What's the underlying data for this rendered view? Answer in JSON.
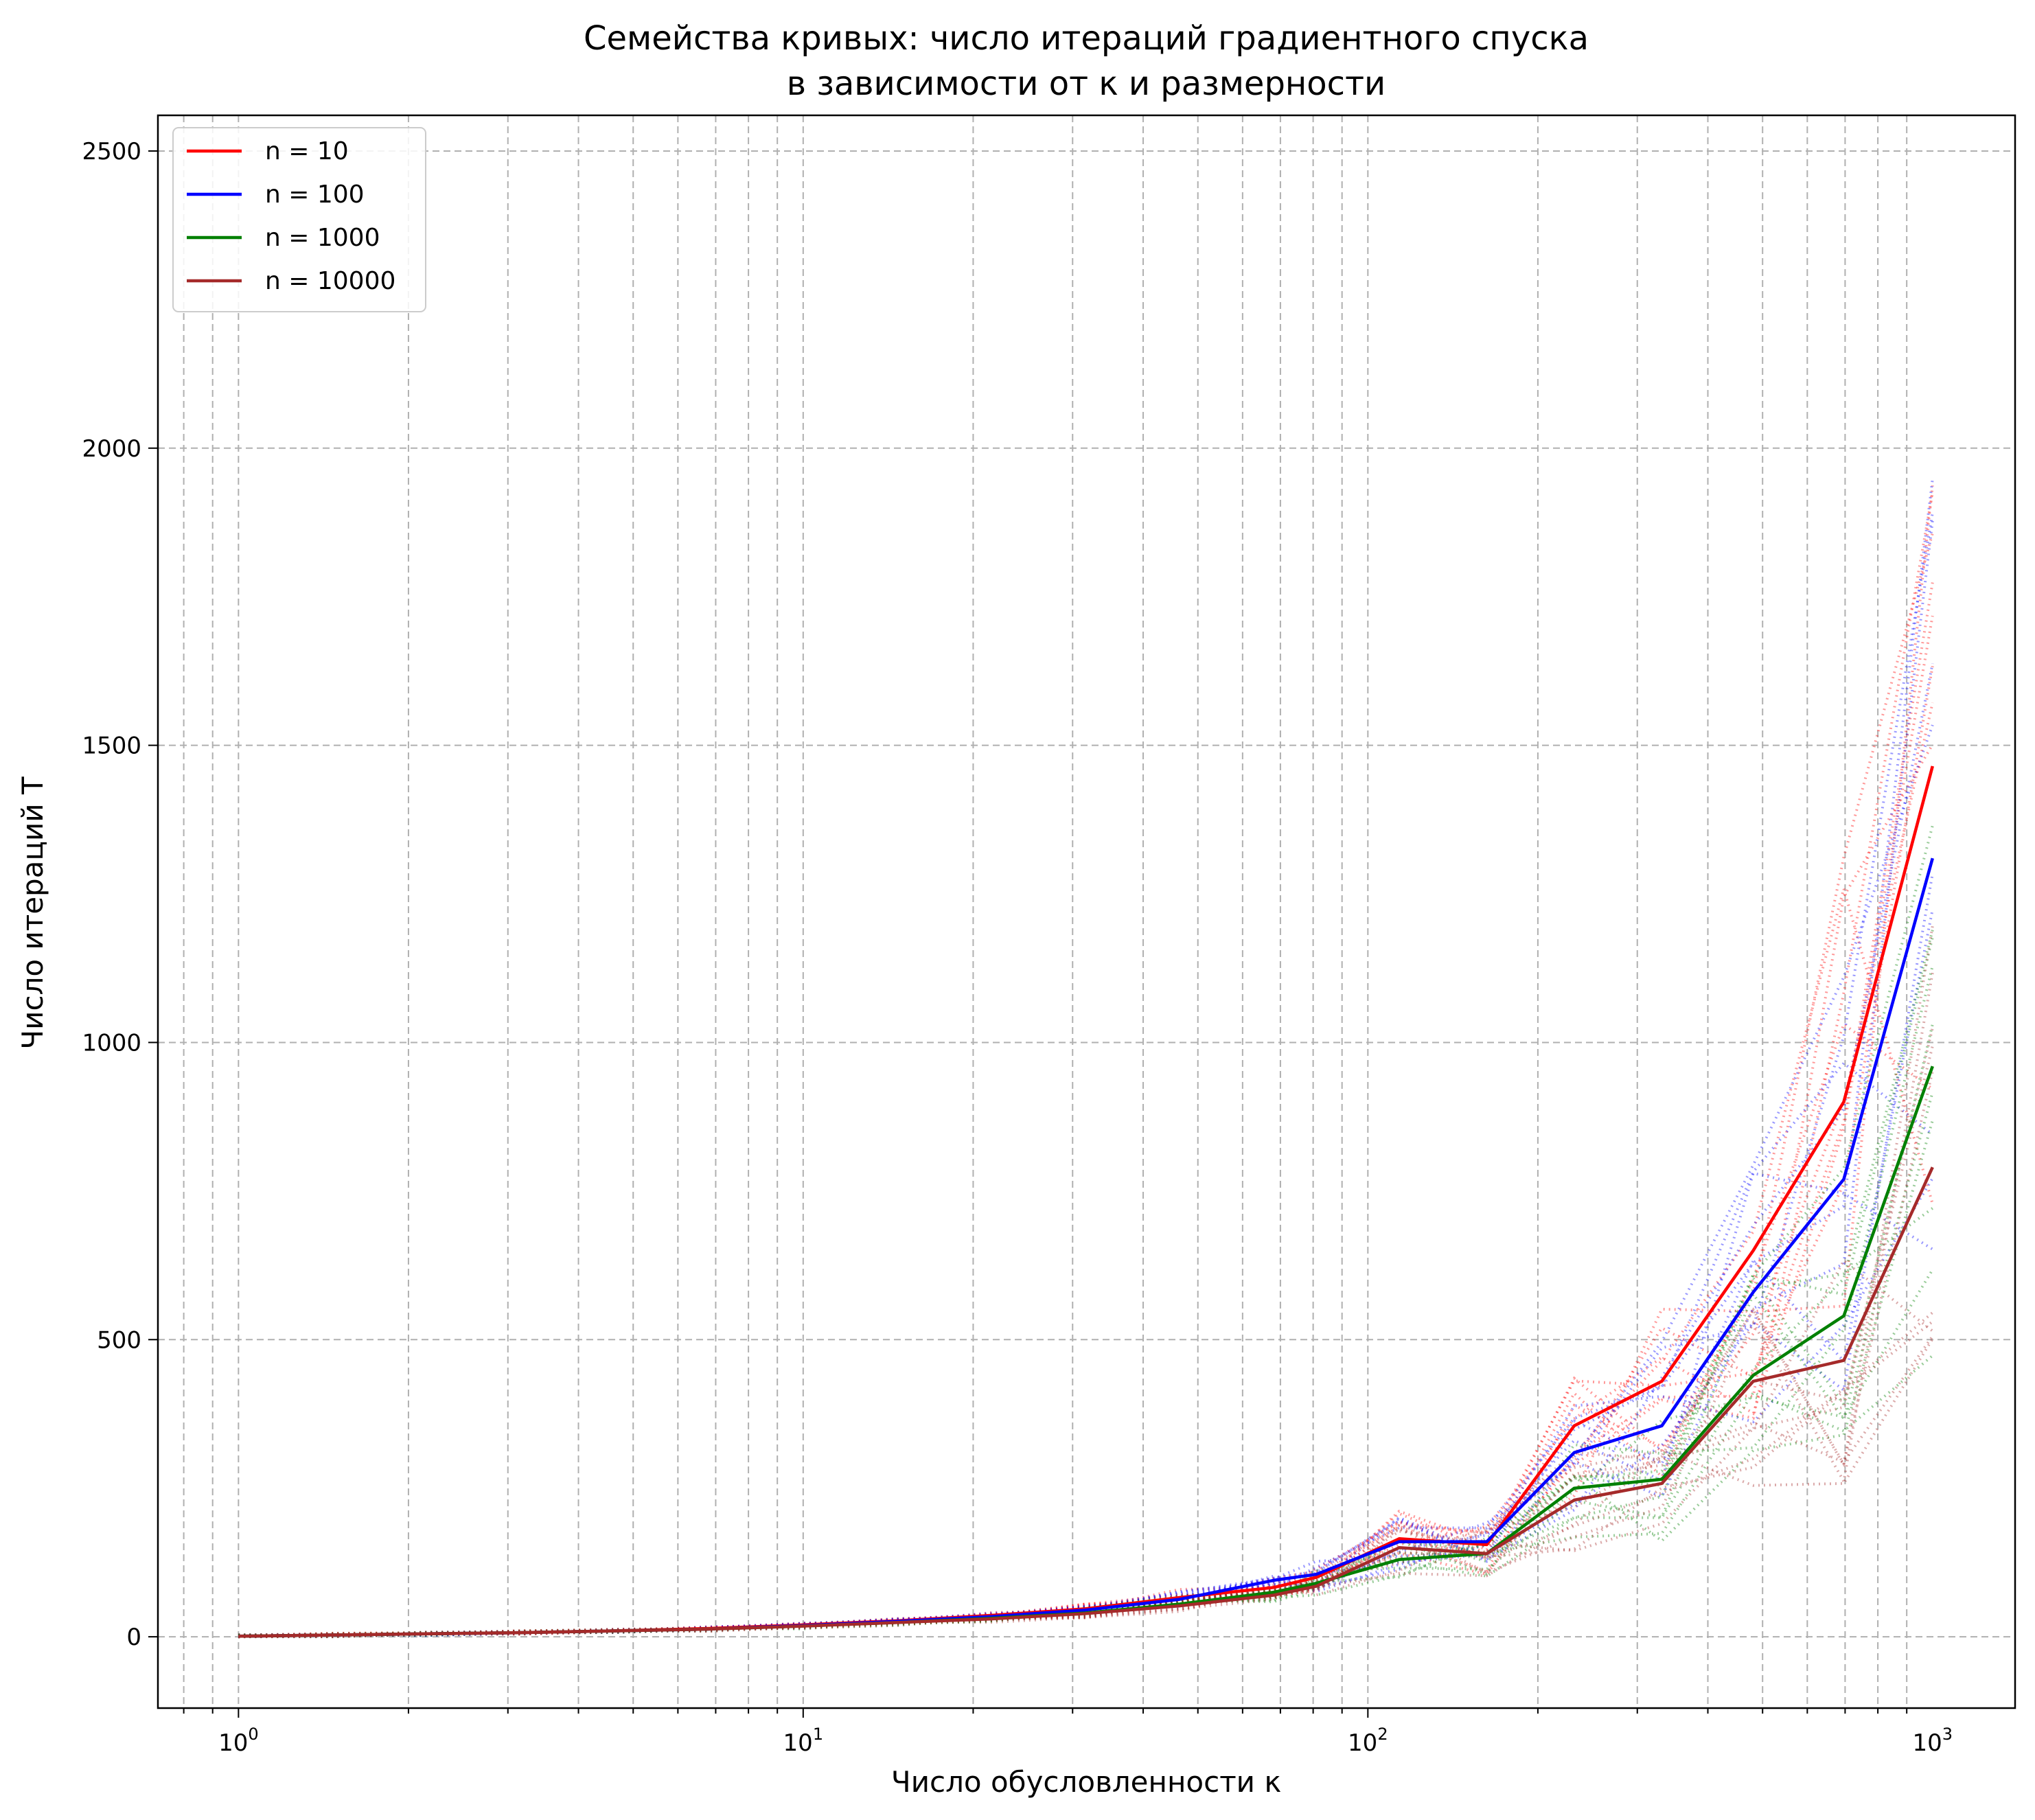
{
  "chart_data": {
    "type": "line",
    "title": "Семейства кривых: число итераций градиентного спуска",
    "subtitle": "в зависимости от κ и размерности",
    "xlabel": "Число обусловленности κ",
    "ylabel": "Число итераций T",
    "xscale": "log",
    "xlim": [
      0.72,
      1400
    ],
    "ylim": [
      -120,
      2560
    ],
    "xticks": [
      {
        "value": 1,
        "base": "10",
        "exp": "0"
      },
      {
        "value": 10,
        "base": "10",
        "exp": "1"
      },
      {
        "value": 100,
        "base": "10",
        "exp": "2"
      },
      {
        "value": 1000,
        "base": "10",
        "exp": "3"
      }
    ],
    "yticks": [
      "0",
      "500",
      "1000",
      "1500",
      "2000",
      "2500"
    ],
    "grid": true,
    "legend_position": "upper-left",
    "x": [
      1.0,
      1.47,
      2.15,
      3.16,
      4.64,
      6.81,
      10.0,
      14.7,
      21.5,
      31.6,
      46.4,
      68.1,
      81.0,
      113.6,
      162.4,
      232.0,
      331.6,
      481.5,
      696.3,
      1000.0
    ],
    "series": [
      {
        "name": "n = 10",
        "color": "#ff0000",
        "values": [
          1,
          3,
          5,
          7,
          10,
          14,
          20,
          27,
          36,
          47,
          66,
          83,
          100,
          165,
          155,
          355,
          430,
          650,
          900,
          1465
        ]
      },
      {
        "name": "n = 100",
        "color": "#0000ff",
        "values": [
          1,
          3,
          5,
          7,
          10,
          13,
          19,
          26,
          34,
          45,
          63,
          95,
          105,
          160,
          160,
          310,
          355,
          580,
          770,
          1310
        ]
      },
      {
        "name": "n = 1000",
        "color": "#008000",
        "values": [
          1,
          3,
          5,
          7,
          10,
          13,
          18,
          24,
          31,
          40,
          55,
          75,
          90,
          130,
          140,
          250,
          265,
          440,
          540,
          960
        ]
      },
      {
        "name": "n = 10000",
        "color": "#a52a2a",
        "values": [
          1,
          3,
          5,
          7,
          10,
          13,
          18,
          24,
          30,
          39,
          52,
          70,
          85,
          150,
          140,
          230,
          258,
          430,
          465,
          790
        ]
      }
    ]
  }
}
